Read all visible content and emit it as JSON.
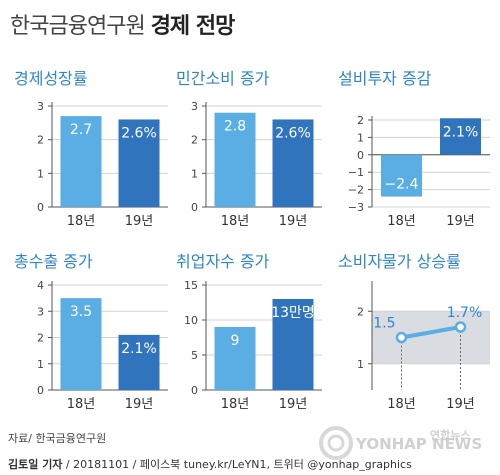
{
  "title": {
    "light": "한국금융연구원",
    "bold": "경제 전망"
  },
  "source": "자료/ 한국금융연구원",
  "credit": {
    "author": "김토일 기자",
    "rest": " / 20181101 / 페이스북 tuney.kr/LeYN1, 트위터 @yonhap_graphics"
  },
  "watermark": {
    "text": "YONHAP NEWS",
    "logo_text": "연합뉴스"
  },
  "colors": {
    "bar_light": "#5aaee3",
    "bar_dark": "#2f74bc",
    "title_blue": "#2e86cc",
    "band": "#d9dde2",
    "grid": "#cfd3d8"
  },
  "chart_data": [
    {
      "type": "bar",
      "title": "경제성장률",
      "categories": [
        "18년",
        "19년"
      ],
      "values": [
        2.7,
        2.6
      ],
      "value_labels": [
        "2.7",
        "2.6%"
      ],
      "yticks": [
        "0",
        "1",
        "2",
        "3"
      ],
      "ylim": [
        0,
        3
      ]
    },
    {
      "type": "bar",
      "title": "민간소비 증가",
      "categories": [
        "18년",
        "19년"
      ],
      "values": [
        2.8,
        2.6
      ],
      "value_labels": [
        "2.8",
        "2.6%"
      ],
      "yticks": [
        "0",
        "1",
        "2",
        "3"
      ],
      "ylim": [
        0,
        3
      ]
    },
    {
      "type": "bar",
      "title": "설비투자 증감",
      "categories": [
        "18년",
        "19년"
      ],
      "values": [
        -2.4,
        2.1
      ],
      "value_labels": [
        "−2.4",
        "2.1%"
      ],
      "yticks": [
        "−3",
        "−2",
        "−1",
        "0",
        "1",
        "2"
      ],
      "ylim": [
        -3,
        2
      ]
    },
    {
      "type": "bar",
      "title": "총수출 증가",
      "categories": [
        "18년",
        "19년"
      ],
      "values": [
        3.5,
        2.1
      ],
      "value_labels": [
        "3.5",
        "2.1%"
      ],
      "yticks": [
        "0",
        "1",
        "2",
        "3",
        "4"
      ],
      "ylim": [
        0,
        4
      ]
    },
    {
      "type": "bar",
      "title": "취업자수 증가",
      "categories": [
        "18년",
        "19년"
      ],
      "values": [
        9,
        13
      ],
      "value_labels": [
        "9",
        "13만명"
      ],
      "yticks": [
        "0",
        "5",
        "10",
        "15"
      ],
      "ylim": [
        0,
        15
      ]
    },
    {
      "type": "line",
      "title": "소비자물가 상승률",
      "categories": [
        "18년",
        "19년"
      ],
      "values": [
        1.5,
        1.7
      ],
      "value_labels": [
        "1.5",
        "1.7%"
      ],
      "yticks": [
        "1",
        "2"
      ],
      "ylim": [
        0.5,
        2.5
      ],
      "band": [
        1,
        2
      ]
    }
  ]
}
